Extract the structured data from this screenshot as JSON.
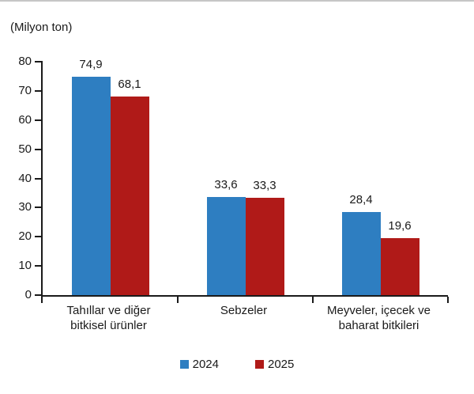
{
  "page": {
    "background": "#ffffff",
    "top_border_color": "#c6c6c6"
  },
  "chart_data": {
    "type": "bar",
    "title": "(Milyon ton)",
    "categories": [
      "Tahıllar ve diğer\nbitkisel ürünler",
      "Sebzeler",
      "Meyveler, içecek ve\nbaharat bitkileri"
    ],
    "series": [
      {
        "name": "2024",
        "color": "#2E7EC1",
        "values": [
          74.9,
          33.6,
          28.4
        ],
        "labels": [
          "74,9",
          "33,6",
          "28,4"
        ]
      },
      {
        "name": "2025",
        "color": "#B01A18",
        "values": [
          68.1,
          33.3,
          19.6
        ],
        "labels": [
          "68,1",
          "33,3",
          "19,6"
        ]
      }
    ],
    "xlabel": "",
    "ylabel": "",
    "ylim": [
      0,
      80
    ],
    "yticks": [
      0,
      10,
      20,
      30,
      40,
      50,
      60,
      70,
      80
    ],
    "grid": false,
    "legend_position": "bottom",
    "axis_color": "#1a1a1a",
    "text_color": "#1a1a1a"
  }
}
